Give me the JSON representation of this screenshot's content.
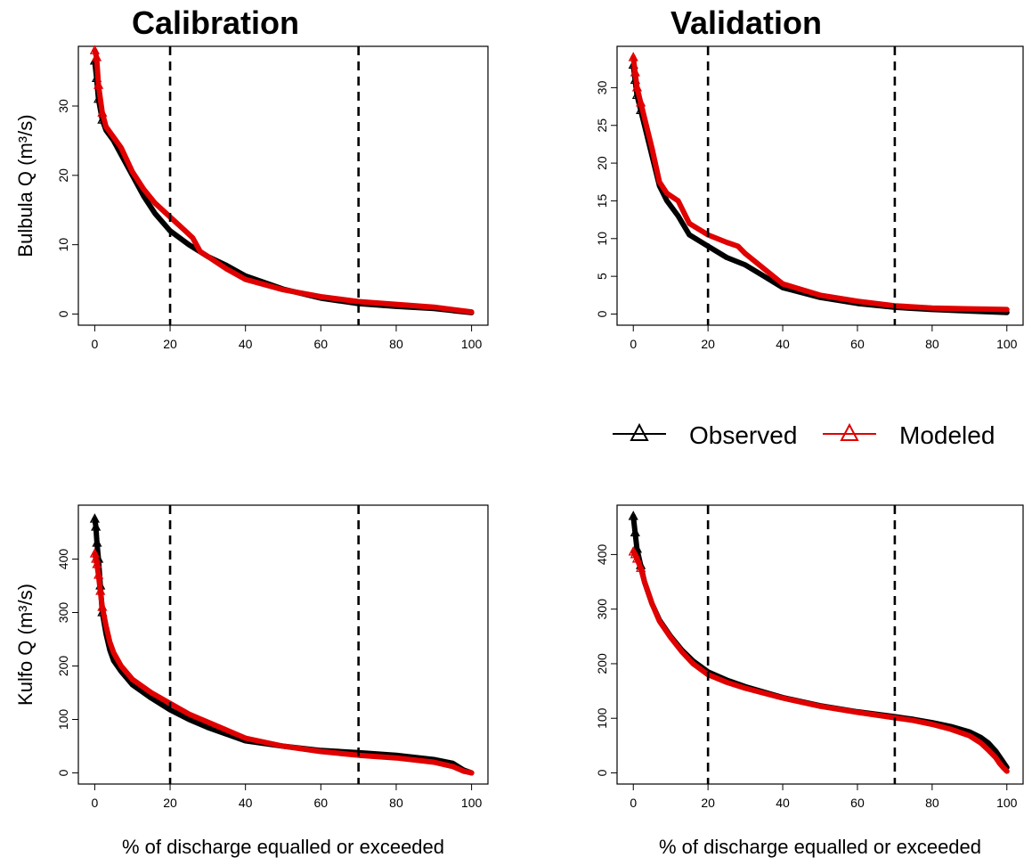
{
  "column_titles": [
    "Calibration",
    "Validation"
  ],
  "legend": {
    "entries": [
      {
        "label": "Observed",
        "color": "#000000",
        "marker": "triangle"
      },
      {
        "label": "Modeled",
        "color": "#e00000",
        "marker": "triangle"
      }
    ]
  },
  "colors": {
    "observed": "#000000",
    "modeled": "#e00000"
  },
  "chart_data": [
    {
      "type": "line",
      "title": "Calibration",
      "xlabel": "",
      "ylabel": "Bulbula Q (m³/s)",
      "xlim": [
        0,
        100
      ],
      "ylim": [
        0,
        37
      ],
      "xticks": [
        0,
        20,
        40,
        60,
        80,
        100
      ],
      "yticks": [
        0,
        10,
        20,
        30
      ],
      "vlines": [
        20,
        70
      ],
      "series": [
        {
          "name": "Observed",
          "x": [
            0,
            0.5,
            1,
            2,
            3,
            5,
            7,
            10,
            13,
            16,
            20,
            25,
            30,
            35,
            40,
            50,
            60,
            70,
            80,
            90,
            100
          ],
          "y": [
            36.5,
            34,
            31,
            28,
            26.5,
            25,
            23,
            20,
            17,
            14.5,
            12,
            10,
            8.3,
            7,
            5.5,
            3.6,
            2.3,
            1.5,
            1.1,
            0.8,
            0.2
          ]
        },
        {
          "name": "Modeled",
          "x": [
            0,
            0.5,
            1,
            2,
            3,
            5,
            7,
            10,
            13,
            16,
            20,
            24,
            26,
            28,
            30,
            35,
            40,
            50,
            60,
            70,
            80,
            90,
            100
          ],
          "y": [
            38,
            37,
            33,
            29,
            27,
            25.5,
            24,
            20.5,
            18,
            16,
            14,
            12,
            11,
            9,
            8.3,
            6.5,
            5,
            3.5,
            2.5,
            1.8,
            1.4,
            1.0,
            0.3
          ]
        }
      ]
    },
    {
      "type": "line",
      "title": "Validation",
      "xlabel": "",
      "ylabel": "",
      "xlim": [
        0,
        100
      ],
      "ylim": [
        0,
        34
      ],
      "xticks": [
        0,
        20,
        40,
        60,
        80,
        100
      ],
      "yticks": [
        0,
        5,
        10,
        15,
        20,
        25,
        30
      ],
      "vlines": [
        20,
        70
      ],
      "series": [
        {
          "name": "Observed",
          "x": [
            0,
            0.5,
            1,
            2,
            3,
            5,
            7,
            9,
            12,
            15,
            20,
            25,
            30,
            35,
            40,
            50,
            60,
            70,
            80,
            90,
            100
          ],
          "y": [
            33,
            31,
            29,
            27,
            25,
            21,
            17,
            15,
            13,
            10.5,
            9,
            7.5,
            6.5,
            5,
            3.5,
            2.2,
            1.4,
            0.9,
            0.6,
            0.4,
            0.2
          ]
        },
        {
          "name": "Modeled",
          "x": [
            0,
            0.5,
            1,
            2,
            3,
            5,
            7,
            9,
            12,
            15,
            20,
            25,
            28,
            30,
            35,
            40,
            50,
            60,
            70,
            80,
            90,
            100
          ],
          "y": [
            34,
            32,
            30,
            28,
            26,
            22,
            17.5,
            16,
            15,
            12,
            10.5,
            9.5,
            9,
            8,
            6,
            4,
            2.5,
            1.7,
            1.1,
            0.8,
            0.7,
            0.6
          ]
        }
      ]
    },
    {
      "type": "line",
      "title": "",
      "xlabel": "% of discharge equalled or exceeded",
      "ylabel": "Kulfo Q (m³/s)",
      "xlim": [
        0,
        100
      ],
      "ylim": [
        0,
        480
      ],
      "xticks": [
        0,
        20,
        40,
        60,
        80,
        100
      ],
      "yticks": [
        0,
        100,
        200,
        300,
        400
      ],
      "vlines": [
        20,
        70
      ],
      "series": [
        {
          "name": "Observed",
          "x": [
            0,
            0.3,
            0.6,
            1,
            1.5,
            2,
            3,
            4,
            5,
            7,
            10,
            15,
            20,
            25,
            30,
            40,
            50,
            60,
            70,
            80,
            90,
            95,
            98,
            100
          ],
          "y": [
            475,
            460,
            430,
            400,
            350,
            300,
            260,
            230,
            210,
            190,
            165,
            140,
            118,
            100,
            85,
            60,
            50,
            42,
            38,
            33,
            25,
            18,
            5,
            0
          ]
        },
        {
          "name": "Modeled",
          "x": [
            0,
            0.3,
            0.6,
            1,
            1.5,
            2,
            3,
            4,
            5,
            7,
            10,
            15,
            20,
            25,
            30,
            40,
            50,
            60,
            70,
            80,
            90,
            95,
            98,
            100
          ],
          "y": [
            410,
            400,
            390,
            370,
            340,
            310,
            275,
            245,
            225,
            200,
            175,
            150,
            130,
            110,
            95,
            65,
            50,
            40,
            33,
            28,
            20,
            12,
            3,
            0
          ]
        }
      ]
    },
    {
      "type": "line",
      "title": "",
      "xlabel": "% of discharge equalled or exceeded",
      "ylabel": "",
      "xlim": [
        0,
        100
      ],
      "ylim": [
        0,
        470
      ],
      "xticks": [
        0,
        20,
        40,
        60,
        80,
        100
      ],
      "yticks": [
        0,
        100,
        200,
        300,
        400
      ],
      "vlines": [
        20,
        70
      ],
      "series": [
        {
          "name": "Observed",
          "x": [
            0,
            0.5,
            1,
            2,
            3,
            5,
            7,
            10,
            13,
            16,
            20,
            25,
            30,
            40,
            50,
            60,
            70,
            75,
            80,
            85,
            90,
            93,
            95,
            97,
            98,
            99,
            100
          ],
          "y": [
            470,
            440,
            410,
            380,
            350,
            310,
            280,
            250,
            225,
            205,
            185,
            170,
            158,
            138,
            123,
            112,
            103,
            98,
            92,
            85,
            75,
            65,
            55,
            40,
            30,
            20,
            10
          ]
        },
        {
          "name": "Modeled",
          "x": [
            0,
            0.5,
            1,
            2,
            3,
            5,
            7,
            10,
            13,
            16,
            20,
            25,
            30,
            40,
            50,
            60,
            70,
            75,
            80,
            85,
            90,
            93,
            95,
            97,
            98,
            99,
            100
          ],
          "y": [
            405,
            400,
            392,
            375,
            350,
            310,
            278,
            248,
            222,
            200,
            180,
            166,
            155,
            137,
            122,
            111,
            101,
            96,
            89,
            80,
            68,
            55,
            42,
            28,
            18,
            10,
            3
          ]
        }
      ]
    }
  ]
}
